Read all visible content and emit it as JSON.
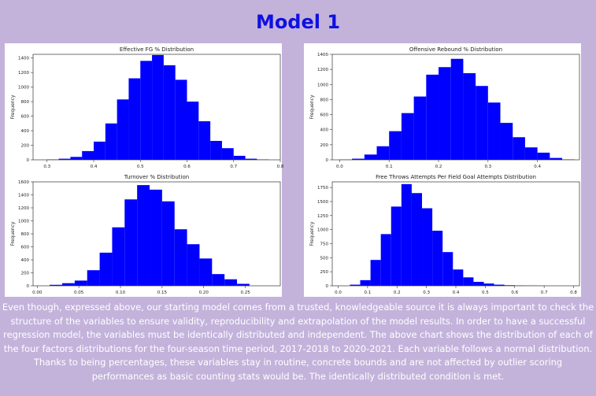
{
  "page": {
    "title": "Model 1",
    "bar_color": "#0000ff",
    "body_text": "Even though, expressed above, our starting model comes from a trusted, knowledgeable source it is always important to check the structure of the variables to ensure validity, reproducibility and extrapolation of the model results. In order to have a successful regression model, the variables must be identically distributed and independent. The above chart shows the distribution of each of the four factors distributions for the four-season time period, 2017-2018 to 2020-2021. Each variable follows a normal distribution. Thanks to being percentages, these variables stay in routine, concrete bounds and are not affected by outlier scoring performances as basic counting stats would be. The identically distributed condition is met."
  },
  "chart_data": [
    {
      "type": "bar",
      "title": "Effective FG % Distribution",
      "xlabel": "",
      "ylabel": "Frequency",
      "xlim": [
        0.27,
        0.8
      ],
      "ylim": [
        0,
        1450
      ],
      "xticks": [
        0.3,
        0.4,
        0.5,
        0.6,
        0.7,
        0.8
      ],
      "xtick_labels": [
        "0.3",
        "0.4",
        "0.5",
        "0.6",
        "0.7",
        "0.8"
      ],
      "yticks": [
        0,
        200,
        400,
        600,
        800,
        1000,
        1200,
        1400
      ],
      "bin_edges": [
        0.3,
        0.325,
        0.35,
        0.375,
        0.4,
        0.425,
        0.45,
        0.475,
        0.5,
        0.525,
        0.55,
        0.575,
        0.6,
        0.625,
        0.65,
        0.675,
        0.7,
        0.725,
        0.75,
        0.775
      ],
      "values": [
        5,
        15,
        40,
        120,
        250,
        500,
        830,
        1120,
        1360,
        1440,
        1300,
        1100,
        800,
        530,
        260,
        160,
        55,
        15,
        5
      ]
    },
    {
      "type": "bar",
      "title": "Offensive Rebound % Distribution",
      "xlabel": "",
      "ylabel": "Frequency",
      "xlim": [
        -0.015,
        0.485
      ],
      "ylim": [
        0,
        1400
      ],
      "xticks": [
        0.0,
        0.1,
        0.2,
        0.3,
        0.4
      ],
      "xtick_labels": [
        "0.0",
        "0.1",
        "0.2",
        "0.3",
        "0.4"
      ],
      "yticks": [
        0,
        200,
        400,
        600,
        800,
        1000,
        1200,
        1400
      ],
      "bin_edges": [
        0.0,
        0.025,
        0.05,
        0.075,
        0.1,
        0.125,
        0.15,
        0.175,
        0.2,
        0.225,
        0.25,
        0.275,
        0.3,
        0.325,
        0.35,
        0.375,
        0.4,
        0.425,
        0.45,
        0.475
      ],
      "values": [
        3,
        15,
        70,
        180,
        380,
        620,
        840,
        1130,
        1230,
        1340,
        1150,
        980,
        760,
        490,
        300,
        165,
        95,
        25,
        5
      ]
    },
    {
      "type": "bar",
      "title": "Turnover % Distribution",
      "xlabel": "",
      "ylabel": "Frequency",
      "xlim": [
        -0.005,
        0.292
      ],
      "ylim": [
        0,
        1600
      ],
      "xticks": [
        0.0,
        0.05,
        0.1,
        0.15,
        0.2,
        0.25
      ],
      "xtick_labels": [
        "0.00",
        "0.05",
        "0.10",
        "0.15",
        "0.20",
        "0.25"
      ],
      "yticks": [
        0,
        200,
        400,
        600,
        800,
        1000,
        1200,
        1400,
        1600
      ],
      "bin_edges": [
        0.015,
        0.03,
        0.045,
        0.06,
        0.075,
        0.09,
        0.105,
        0.12,
        0.135,
        0.15,
        0.165,
        0.18,
        0.195,
        0.21,
        0.225,
        0.24,
        0.255
      ],
      "values": [
        15,
        40,
        80,
        240,
        510,
        900,
        1330,
        1550,
        1480,
        1300,
        870,
        640,
        420,
        180,
        100,
        30
      ]
    },
    {
      "type": "bar",
      "title": "Free Throws Attempts Per Field Goal Attempts Distribution",
      "xlabel": "",
      "ylabel": "Frequency",
      "xlim": [
        -0.02,
        0.82
      ],
      "ylim": [
        0,
        1850
      ],
      "xticks": [
        0.0,
        0.1,
        0.2,
        0.3,
        0.4,
        0.5,
        0.6,
        0.7,
        0.8
      ],
      "xtick_labels": [
        "0.0",
        "0.1",
        "0.2",
        "0.3",
        "0.4",
        "0.5",
        "0.6",
        "0.7",
        "0.8"
      ],
      "yticks": [
        0,
        250,
        500,
        750,
        1000,
        1250,
        1500,
        1750
      ],
      "bin_edges": [
        0.04,
        0.075,
        0.11,
        0.145,
        0.18,
        0.215,
        0.25,
        0.285,
        0.32,
        0.355,
        0.39,
        0.425,
        0.46,
        0.495,
        0.53,
        0.565,
        0.6,
        0.635,
        0.67,
        0.705
      ],
      "values": [
        20,
        100,
        460,
        920,
        1410,
        1810,
        1650,
        1380,
        980,
        600,
        290,
        150,
        70,
        40,
        20,
        10,
        5,
        3,
        2
      ]
    }
  ]
}
